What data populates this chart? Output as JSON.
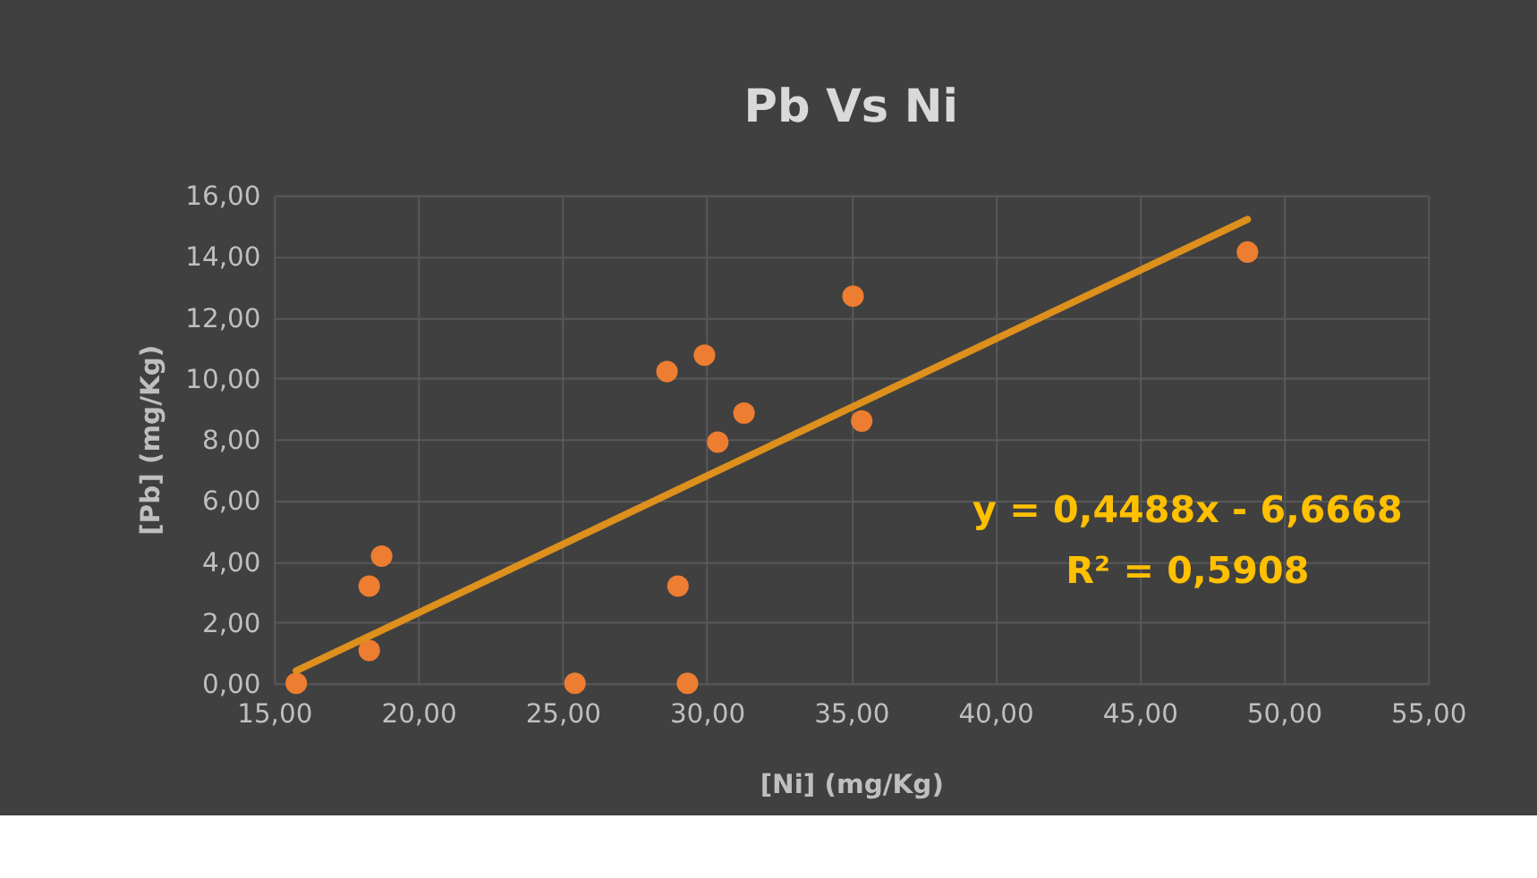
{
  "chart_data": {
    "type": "scatter",
    "title": "Pb Vs Ni",
    "xlabel": "[Ni] (mg/Kg)",
    "ylabel": "[Pb]  (mg/Kg)",
    "series": [
      {
        "marker": "circle",
        "color": "#ed7d31",
        "x": [
          15.77,
          18.3,
          18.3,
          18.73,
          25.43,
          28.62,
          29.92,
          29.0,
          29.33,
          30.38,
          31.29,
          35.07,
          35.37,
          48.74
        ],
        "values": [
          0,
          1.08,
          3.19,
          4.17,
          0,
          10.22,
          10.76,
          3.19,
          0,
          7.91,
          8.86,
          12.69,
          8.6,
          14.14
        ]
      },
      {
        "type": "line",
        "marker": "none",
        "color": "#dd901c",
        "x": [
          15.77,
          48.74
        ],
        "values": [
          0.41,
          15.21
        ]
      }
    ],
    "annotations": [
      "y = 0,4488x - 6,6668",
      "R² = 0,5908"
    ],
    "xlim": [
      15,
      55
    ],
    "xticks": [
      {
        "value": 15,
        "label": "15,00"
      },
      {
        "value": 20,
        "label": "20,00"
      },
      {
        "value": 25,
        "label": "25,00"
      },
      {
        "value": 30,
        "label": "30,00"
      },
      {
        "value": 35,
        "label": "35,00"
      },
      {
        "value": 40,
        "label": "40,00"
      },
      {
        "value": 45,
        "label": "45,00"
      },
      {
        "value": 50,
        "label": "50,00"
      },
      {
        "value": 55,
        "label": "55,00"
      }
    ],
    "ylim": [
      0,
      16
    ],
    "yticks": [
      {
        "value": 0,
        "label": "0,00"
      },
      {
        "value": 2,
        "label": "2,00"
      },
      {
        "value": 4,
        "label": "4,00"
      },
      {
        "value": 6,
        "label": "6,00"
      },
      {
        "value": 8,
        "label": "8,00"
      },
      {
        "value": 10,
        "label": "10,00"
      },
      {
        "value": 12,
        "label": "12,00"
      },
      {
        "value": 14,
        "label": "14,00"
      },
      {
        "value": 16,
        "label": "16,00"
      }
    ],
    "grid": true,
    "line_style": "solid"
  }
}
